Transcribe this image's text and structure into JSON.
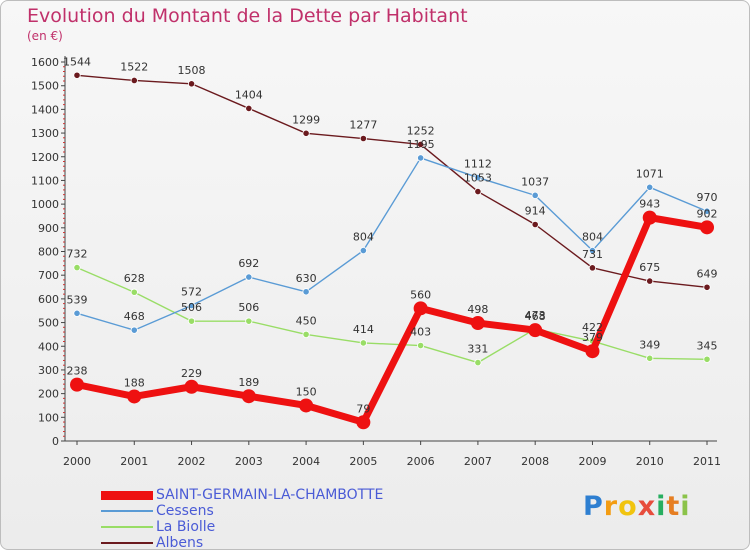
{
  "chart_data": {
    "type": "line",
    "title": "Evolution du Montant de la Dette par Habitant",
    "unit_label": "(en €)",
    "x": [
      "2000",
      "2001",
      "2002",
      "2003",
      "2004",
      "2005",
      "2006",
      "2007",
      "2008",
      "2009",
      "2010",
      "2011"
    ],
    "y_ticks": [
      "0",
      "100",
      "200",
      "300",
      "400",
      "500",
      "600",
      "700",
      "800",
      "900",
      "1000",
      "1100",
      "1200",
      "1300",
      "1400",
      "1500",
      "1600"
    ],
    "ylim": [
      0,
      1600
    ],
    "grid": false,
    "legend_position": "bottom-left",
    "series": [
      {
        "name": "SAINT-GERMAIN-LA-CHAMBOTTE",
        "color": "#ee1111",
        "values": [
          238,
          188,
          229,
          189,
          150,
          79,
          560,
          498,
          468,
          379,
          943,
          902
        ],
        "labels": [
          "238",
          "188",
          "229",
          "189",
          "150",
          "79",
          "560",
          "498",
          "468",
          "379",
          "943",
          "902"
        ]
      },
      {
        "name": "Cessens",
        "color": "#5a9bd5",
        "values": [
          539,
          468,
          572,
          692,
          630,
          804,
          1195,
          1112,
          1037,
          804,
          1071,
          970
        ],
        "labels": [
          "539",
          "468",
          "572",
          "692",
          "630",
          "804",
          "1195",
          "1112",
          "1037",
          "804",
          "1071",
          "970"
        ]
      },
      {
        "name": "La Biolle",
        "color": "#99dd66",
        "values": [
          732,
          628,
          506,
          506,
          450,
          414,
          403,
          331,
          473,
          422,
          349,
          345
        ],
        "labels": [
          "732",
          "628",
          "506",
          "506",
          "450",
          "414",
          "403",
          "331",
          "473",
          "422",
          "349",
          "345"
        ]
      },
      {
        "name": "Albens",
        "color": "#6b1a1e",
        "values": [
          1544,
          1522,
          1508,
          1404,
          1299,
          1277,
          1252,
          1053,
          914,
          731,
          675,
          649
        ],
        "labels": [
          "1544",
          "1522",
          "1508",
          "1404",
          "1299",
          "1277",
          "1252",
          "1053",
          "914",
          "731",
          "675",
          "649"
        ]
      }
    ]
  },
  "logo": {
    "letters": [
      "P",
      "r",
      "o",
      "x",
      "i",
      "t",
      "i"
    ],
    "colors": [
      "#2e7fd1",
      "#f39c12",
      "#f1c40f",
      "#e74c3c",
      "#27ae60",
      "#e67e22",
      "#8bc34a"
    ]
  }
}
